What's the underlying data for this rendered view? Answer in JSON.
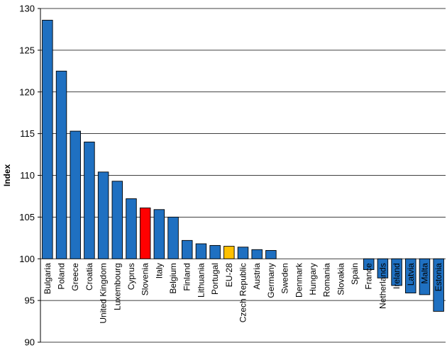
{
  "chart_data": {
    "type": "bar",
    "title": "",
    "xlabel": "",
    "ylabel": "Index",
    "ylim": [
      90,
      130
    ],
    "yticks": [
      90,
      95,
      100,
      105,
      110,
      115,
      120,
      125,
      130
    ],
    "baseline": 100,
    "grid": true,
    "categories": [
      "Bulgaria",
      "Poland",
      "Greece",
      "Croatia",
      "United Kingdom",
      "Luxembourg",
      "Cyprus",
      "Slovenia",
      "Italy",
      "Belgium",
      "Finland",
      "Lithuania",
      "Portugal",
      "EU-28",
      "Czech Republic",
      "Austria",
      "Germany",
      "Sweden",
      "Denmark",
      "Hungary",
      "Romania",
      "Slovakia",
      "Spain",
      "France",
      "Netherlands",
      "Ireland",
      "Latvia",
      "Malta",
      "Estonia"
    ],
    "values": [
      128.6,
      122.5,
      115.3,
      114.0,
      110.4,
      109.3,
      107.2,
      106.1,
      105.9,
      105.0,
      102.2,
      101.8,
      101.6,
      101.5,
      101.4,
      101.1,
      101.0,
      100.0,
      100.0,
      100.0,
      100.0,
      100.0,
      100.0,
      98.7,
      97.7,
      96.8,
      95.9,
      95.7,
      93.7
    ],
    "colors": {
      "default": "#1f70c1",
      "highlight": "#ff0000",
      "eu": "#ffc000",
      "stroke": "#000000"
    },
    "highlight_category": "Slovenia",
    "eu_category": "EU-28"
  }
}
